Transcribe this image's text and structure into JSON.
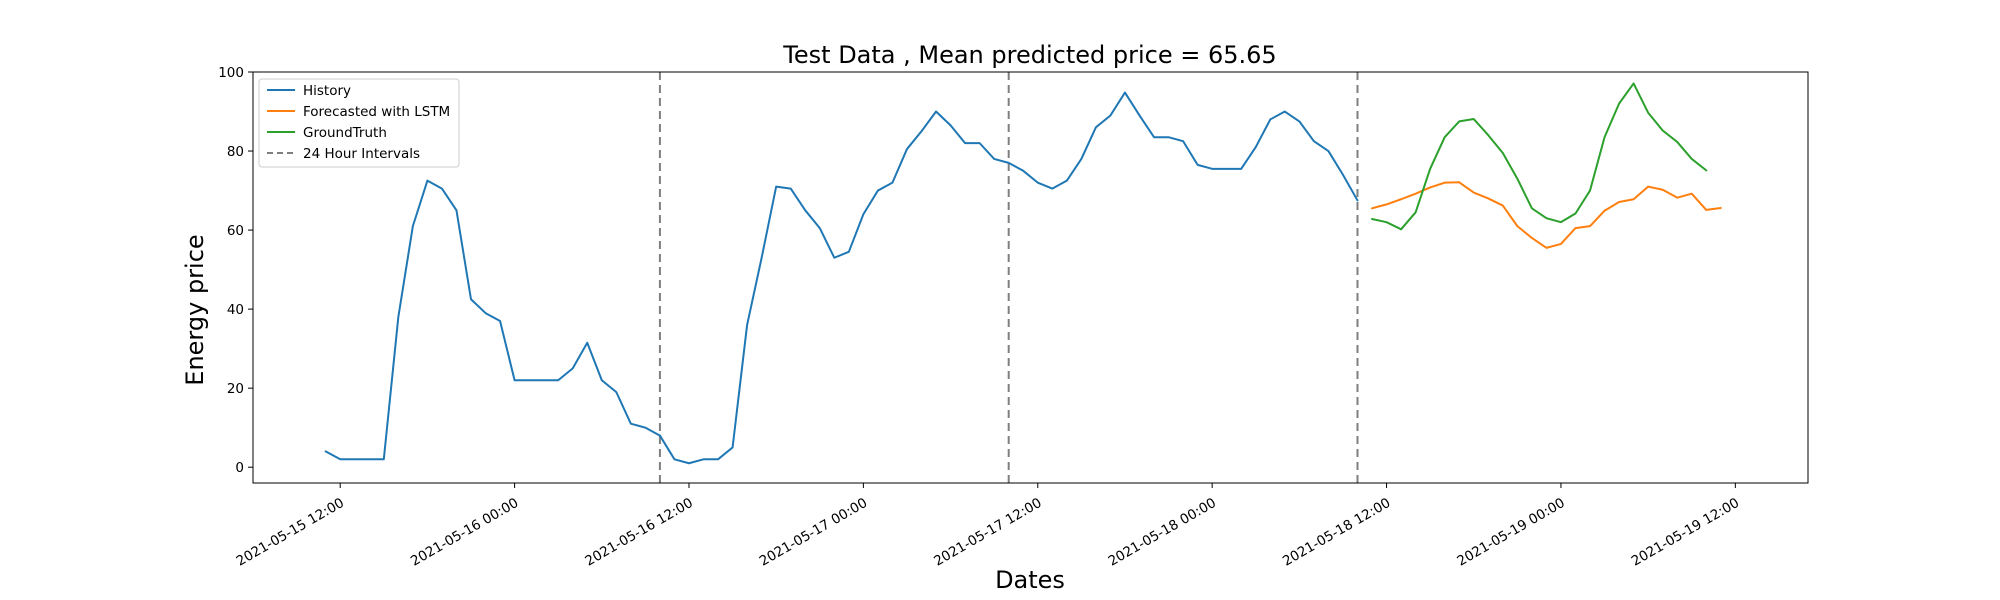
{
  "chart_data": {
    "type": "line",
    "title": "Test Data , Mean predicted price = 65.65",
    "xlabel": "Dates",
    "ylabel": "Energy price",
    "xlim": [
      "2021-05-15 06:00",
      "2021-05-19 17:00"
    ],
    "ylim": [
      -4,
      100
    ],
    "yticks": [
      0,
      20,
      40,
      60,
      80,
      100
    ],
    "xticks": [
      "2021-05-15 12:00",
      "2021-05-16 00:00",
      "2021-05-16 12:00",
      "2021-05-17 00:00",
      "2021-05-17 12:00",
      "2021-05-18 00:00",
      "2021-05-18 12:00",
      "2021-05-19 00:00",
      "2021-05-19 12:00"
    ],
    "grid": false,
    "legend_position": "top-left",
    "vlines": {
      "name": "24 Hour Intervals",
      "color": "#7f7f7f",
      "style": "dashed",
      "x": [
        "2021-05-16 10:00",
        "2021-05-17 10:00",
        "2021-05-18 10:00"
      ]
    },
    "series": [
      {
        "name": "History",
        "color": "#1f77b4",
        "x_start": "2021-05-15 11:00",
        "x_step_hours": 1,
        "values": [
          4,
          2,
          2,
          2,
          2,
          38,
          61,
          72.5,
          70.5,
          65,
          42.5,
          39,
          37,
          22,
          22,
          22,
          22,
          25,
          31.5,
          22,
          19,
          11,
          10,
          8,
          2,
          1,
          2,
          2,
          5,
          36,
          53,
          71,
          70.5,
          65,
          60.5,
          53,
          54.5,
          64,
          70,
          72,
          80.5,
          85,
          90,
          86.5,
          82,
          82,
          78,
          77,
          75,
          72,
          70.5,
          72.5,
          78,
          86,
          89,
          94.8,
          89,
          83.5,
          83.5,
          82.5,
          76.5,
          75.5,
          75.5,
          75.5,
          81,
          88,
          90,
          87.5,
          82.5,
          80,
          74,
          67.5
        ]
      },
      {
        "name": "Forecasted with LSTM",
        "color": "#ff7f0e",
        "x_start": "2021-05-18 11:00",
        "x_step_hours": 1,
        "values": [
          65.5,
          66.5,
          67.8,
          69.2,
          70.8,
          72.0,
          72.1,
          69.5,
          68.0,
          66.2,
          61.0,
          58.0,
          55.5,
          56.5,
          60.5,
          61.0,
          64.9,
          67.1,
          67.8,
          71.0,
          70.2,
          68.2,
          69.2,
          65.1,
          65.6
        ]
      },
      {
        "name": "GroundTruth",
        "color": "#2ca02c",
        "x_start": "2021-05-18 11:00",
        "x_step_hours": 1,
        "values": [
          62.8,
          62.0,
          60.2,
          64.5,
          75.5,
          83.5,
          87.5,
          88.1,
          84.0,
          79.5,
          73.0,
          65.5,
          63.0,
          62.0,
          64.2,
          70.0,
          83.5,
          92.0,
          97.1,
          89.7,
          85.2,
          82.3,
          78.0,
          75.1
        ]
      }
    ]
  },
  "legend": {
    "items": [
      {
        "label": "History",
        "color": "#1f77b4",
        "style": "solid"
      },
      {
        "label": "Forecasted with LSTM",
        "color": "#ff7f0e",
        "style": "solid"
      },
      {
        "label": "GroundTruth",
        "color": "#2ca02c",
        "style": "solid"
      },
      {
        "label": "24 Hour Intervals",
        "color": "#7f7f7f",
        "style": "dashed"
      }
    ]
  }
}
